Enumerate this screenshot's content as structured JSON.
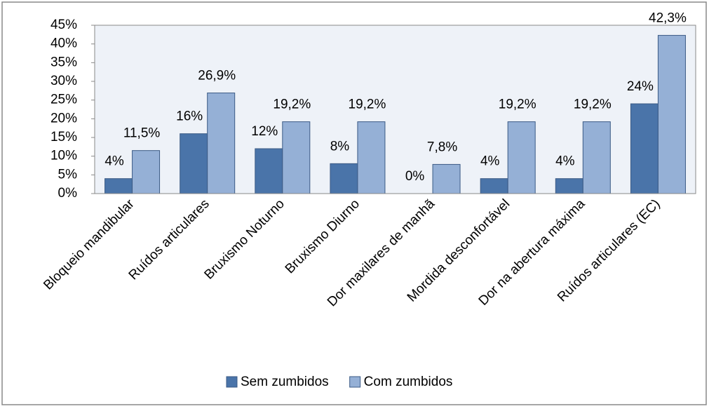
{
  "chart_data": {
    "type": "bar",
    "categories": [
      "Bloqueio mandibular",
      "Ruídos articulares",
      "Bruxismo Noturno",
      "Bruxismo Diurno",
      "Dor maxilares de manhã",
      "Mordida desconfortável",
      "Dor na abertura máxima",
      "Ruídos articulares (EC)"
    ],
    "series": [
      {
        "name": "Sem zumbidos",
        "color": "#4a74a9",
        "values": [
          4,
          16,
          12,
          8,
          0,
          4,
          4,
          24
        ],
        "value_labels": [
          "4%",
          "16%",
          "12%",
          "8%",
          "0%",
          "4%",
          "4%",
          "24%"
        ]
      },
      {
        "name": "Com zumbidos",
        "color": "#95b0d6",
        "values": [
          11.5,
          26.9,
          19.2,
          19.2,
          7.8,
          19.2,
          19.2,
          42.3
        ],
        "value_labels": [
          "11,5%",
          "26,9%",
          "19,2%",
          "19,2%",
          "7,8%",
          "19,2%",
          "19,2%",
          "42,3%"
        ]
      }
    ],
    "ylim": [
      0,
      45
    ],
    "yticks": [
      {
        "value": 0,
        "label": "0%"
      },
      {
        "value": 5,
        "label": "5%"
      },
      {
        "value": 10,
        "label": "10%"
      },
      {
        "value": 15,
        "label": "15%"
      },
      {
        "value": 20,
        "label": "20%"
      },
      {
        "value": 25,
        "label": "25%"
      },
      {
        "value": 30,
        "label": "30%"
      },
      {
        "value": 35,
        "label": "35%"
      },
      {
        "value": 40,
        "label": "40%"
      },
      {
        "value": 45,
        "label": "45%"
      }
    ],
    "grid": false,
    "legend": "bottom"
  }
}
